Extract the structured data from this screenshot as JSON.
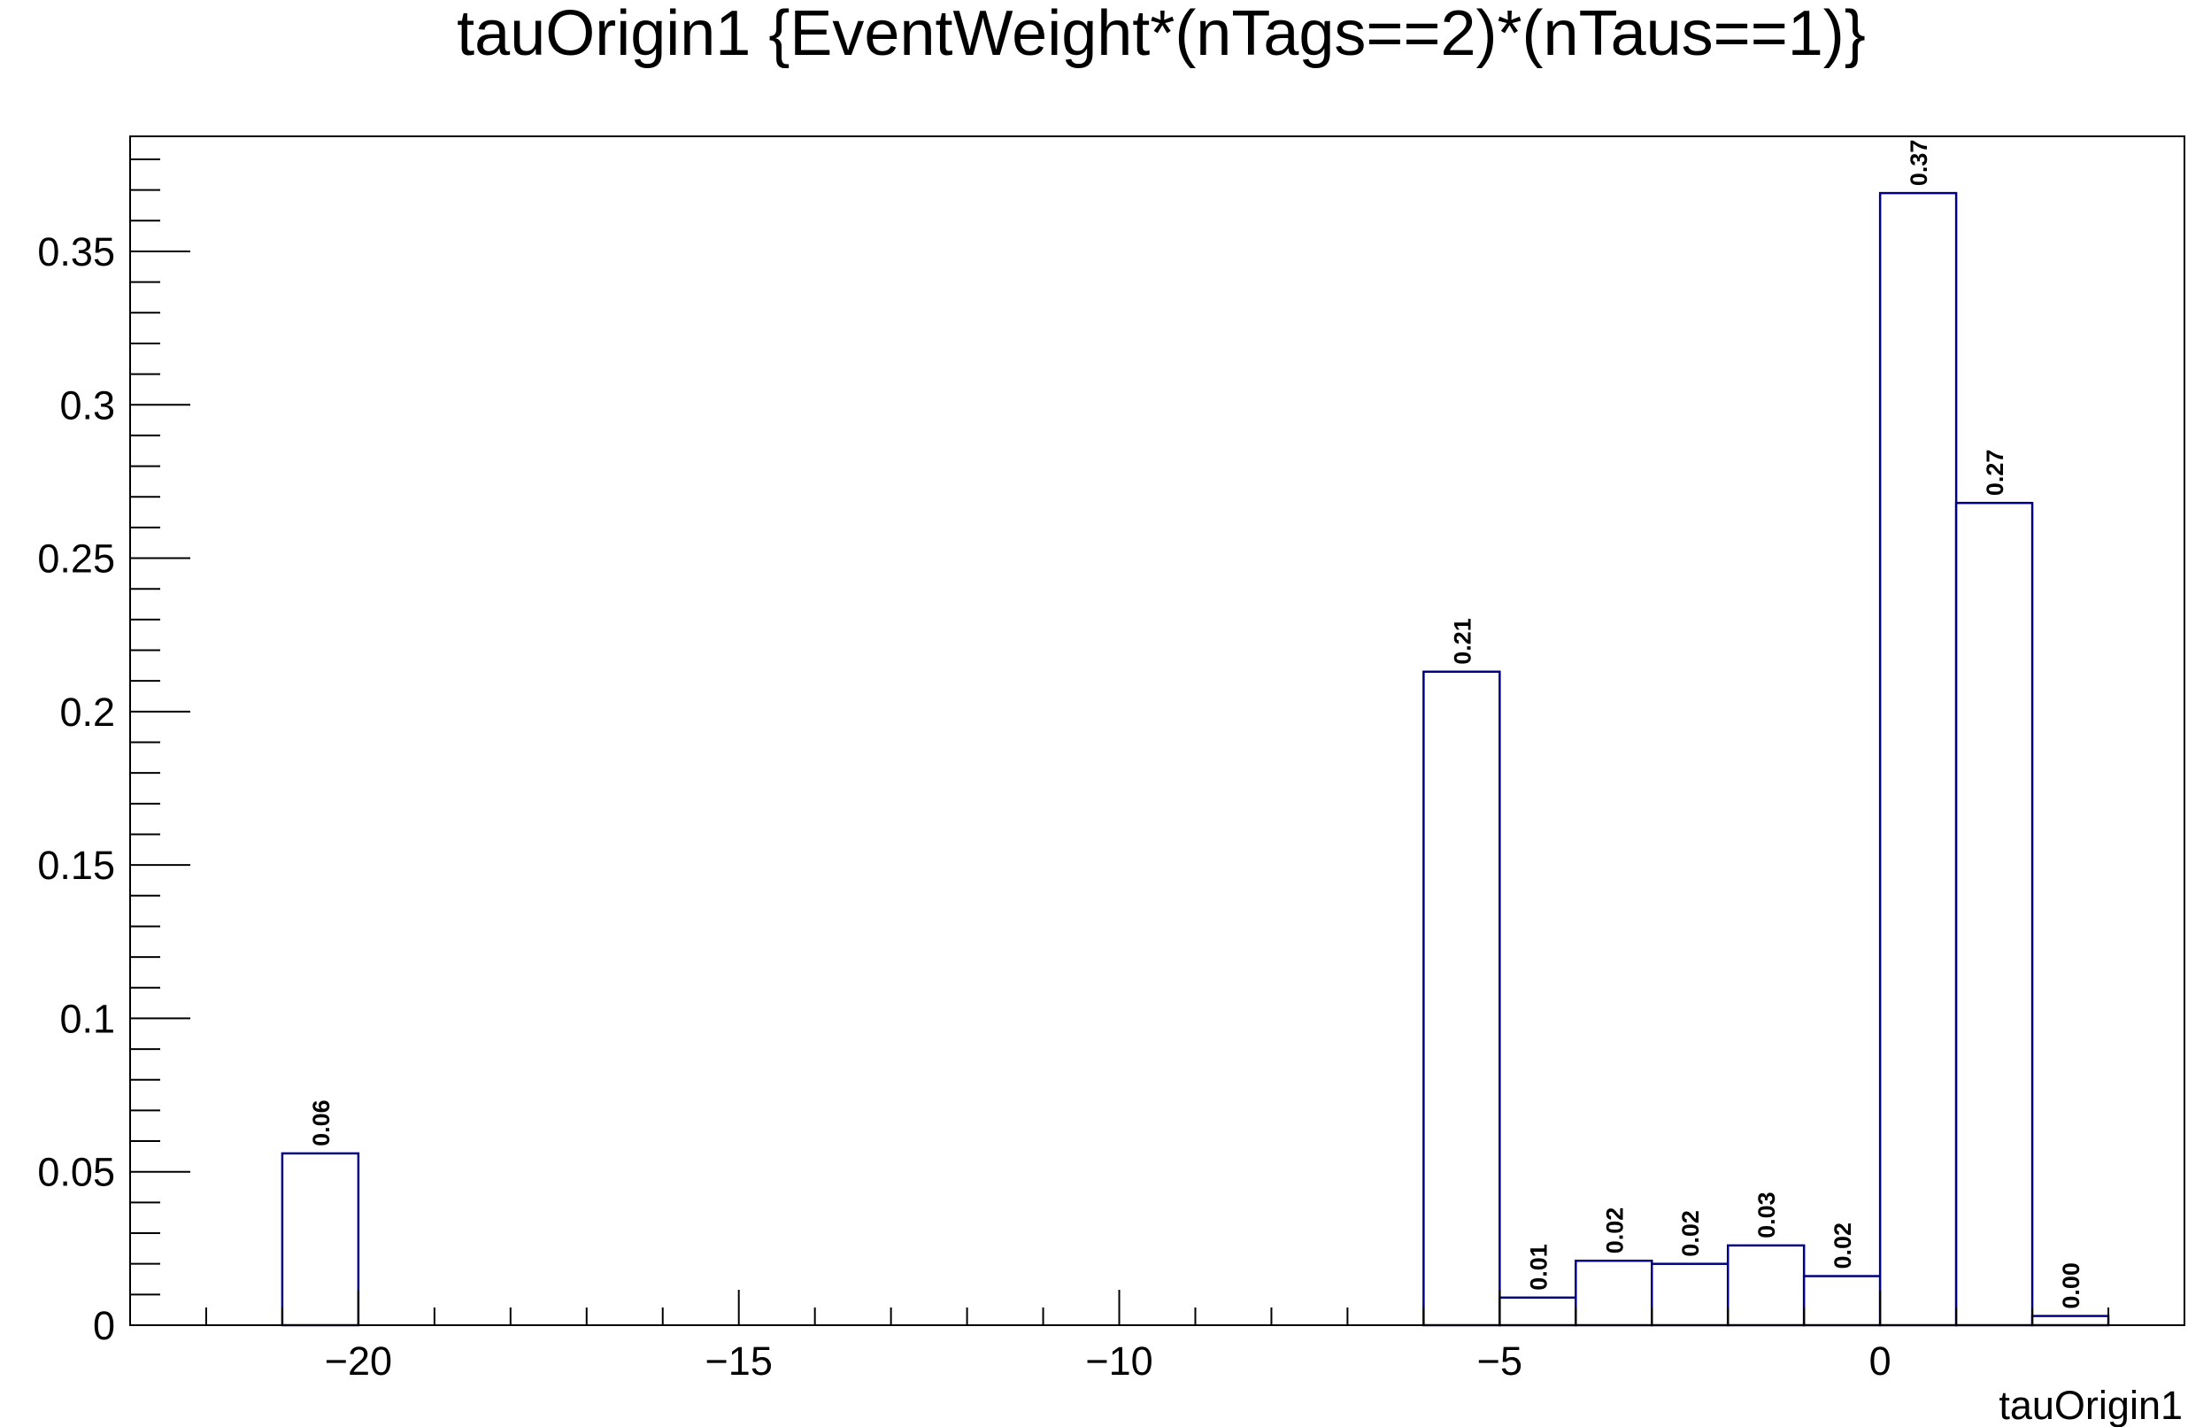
{
  "chart_data": {
    "type": "bar",
    "title": "tauOrigin1 {EventWeight*(nTags==2)*(nTaus==1)}",
    "xlabel": "tauOrigin1",
    "ylabel": "",
    "xlim": [
      -23,
      4
    ],
    "ylim": [
      0,
      0.3875
    ],
    "bin_width": 1,
    "xticks": [
      -20,
      -15,
      -10,
      -5,
      0
    ],
    "xtick_labels": [
      "−20",
      "−15",
      "−10",
      "−5",
      "0"
    ],
    "yticks": [
      0,
      0.05,
      0.1,
      0.15,
      0.2,
      0.25,
      0.3,
      0.35
    ],
    "ytick_labels": [
      "0",
      "0.05",
      "0.1",
      "0.15",
      "0.2",
      "0.25",
      "0.3",
      "0.35"
    ],
    "bins": [
      {
        "x_low": -21,
        "value": 0.056,
        "label": "0.06"
      },
      {
        "x_low": -6,
        "value": 0.213,
        "label": "0.21"
      },
      {
        "x_low": -5,
        "value": 0.009,
        "label": "0.01"
      },
      {
        "x_low": -4,
        "value": 0.021,
        "label": "0.02"
      },
      {
        "x_low": -3,
        "value": 0.02,
        "label": "0.02"
      },
      {
        "x_low": -2,
        "value": 0.026,
        "label": "0.03"
      },
      {
        "x_low": -1,
        "value": 0.016,
        "label": "0.02"
      },
      {
        "x_low": 0,
        "value": 0.369,
        "label": "0.37"
      },
      {
        "x_low": 1,
        "value": 0.268,
        "label": "0.27"
      },
      {
        "x_low": 2,
        "value": 0.003,
        "label": "0.00"
      }
    ],
    "grid": false,
    "legend": "none",
    "line_color": "#000080"
  }
}
